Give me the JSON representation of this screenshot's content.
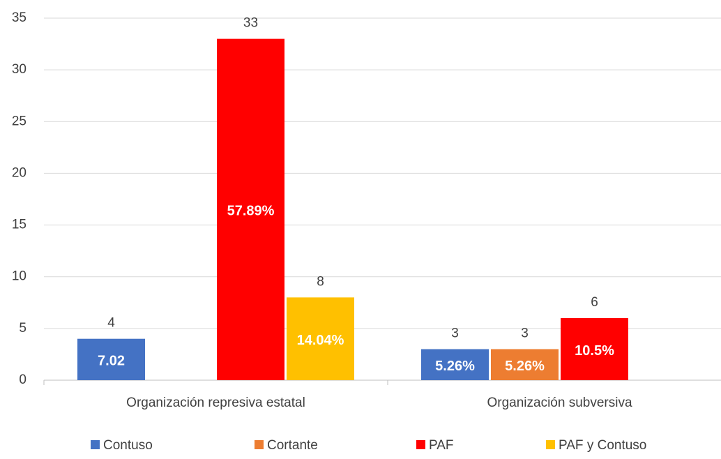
{
  "chart_data": {
    "type": "bar",
    "categories": [
      "Organización represiva estatal",
      "Organización subversiva"
    ],
    "series": [
      {
        "name": "Contuso",
        "color": "#4472c4",
        "values": [
          4,
          3
        ],
        "inner_labels": [
          "7.02",
          "5.26%"
        ]
      },
      {
        "name": "Cortante",
        "color": "#ed7d31",
        "values": [
          null,
          3
        ],
        "inner_labels": [
          null,
          "5.26%"
        ]
      },
      {
        "name": "PAF",
        "color": "#ff0000",
        "values": [
          33,
          6
        ],
        "inner_labels": [
          "57.89%",
          "10.5%"
        ]
      },
      {
        "name": "PAF y Contuso",
        "color": "#ffc000",
        "values": [
          8,
          null
        ],
        "inner_labels": [
          "14.04%",
          null
        ]
      }
    ],
    "ylim": [
      0,
      35
    ],
    "yticks": [
      0,
      5,
      10,
      15,
      20,
      25,
      30,
      35
    ],
    "grid": true,
    "legend": "bottom"
  }
}
